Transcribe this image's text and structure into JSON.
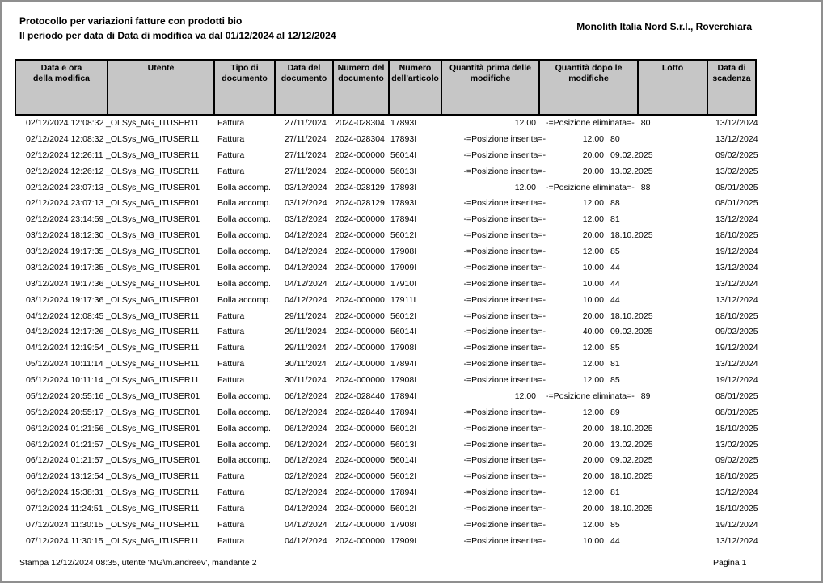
{
  "report": {
    "title": "Protocollo per variazioni fatture con prodotti bio",
    "subtitle": "Il periodo per data di Data di modifica va dal 01/12/2024 al 12/12/2024",
    "company": "Monolith Italia Nord S.r.l., Roverchiara",
    "footer_left": "Stampa 12/12/2024 08:35, utente 'MG\\m.andreev', mandante 2",
    "footer_right": "Pagina 1"
  },
  "colors": {
    "header_bg": "#c6c6c6",
    "table_border": "#000000",
    "page_frame": "#8f8f8f"
  },
  "table": {
    "columns": [
      "Data e ora\ndella modifica",
      "Utente",
      "Tipo di\ndocumento",
      "Data del\ndocumento",
      "Numero del\ndocumento",
      "Numero\ndell'articolo",
      "Quantità prima delle\nmodifiche",
      "Quantità dopo le\nmodifiche",
      "Lotto",
      "Data di\nscadenza"
    ],
    "marker_prefix": "-=",
    "rows": [
      [
        "02/12/2024 12:08:32",
        "_OLSys_MG_ITUSER11",
        "Fattura",
        "27/11/2024",
        "2024-028304",
        "17893I",
        "12.00",
        "-=Posizione eliminata=-",
        "80",
        "13/12/2024"
      ],
      [
        "02/12/2024 12:08:32",
        "_OLSys_MG_ITUSER11",
        "Fattura",
        "27/11/2024",
        "2024-028304",
        "17893I",
        "-=Posizione inserita=-",
        "12.00",
        "80",
        "13/12/2024"
      ],
      [
        "02/12/2024 12:26:11",
        "_OLSys_MG_ITUSER11",
        "Fattura",
        "27/11/2024",
        "2024-000000",
        "56014I",
        "-=Posizione inserita=-",
        "20.00",
        "09.02.2025",
        "09/02/2025"
      ],
      [
        "02/12/2024 12:26:12",
        "_OLSys_MG_ITUSER11",
        "Fattura",
        "27/11/2024",
        "2024-000000",
        "56013I",
        "-=Posizione inserita=-",
        "20.00",
        "13.02.2025",
        "13/02/2025"
      ],
      [
        "02/12/2024 23:07:13",
        "_OLSys_MG_ITUSER01",
        "Bolla accomp.",
        "03/12/2024",
        "2024-028129",
        "17893I",
        "12.00",
        "-=Posizione eliminata=-",
        "88",
        "08/01/2025"
      ],
      [
        "02/12/2024 23:07:13",
        "_OLSys_MG_ITUSER01",
        "Bolla accomp.",
        "03/12/2024",
        "2024-028129",
        "17893I",
        "-=Posizione inserita=-",
        "12.00",
        "88",
        "08/01/2025"
      ],
      [
        "02/12/2024 23:14:59",
        "_OLSys_MG_ITUSER01",
        "Bolla accomp.",
        "03/12/2024",
        "2024-000000",
        "17894I",
        "-=Posizione inserita=-",
        "12.00",
        "81",
        "13/12/2024"
      ],
      [
        "03/12/2024 18:12:30",
        "_OLSys_MG_ITUSER01",
        "Bolla accomp.",
        "04/12/2024",
        "2024-000000",
        "56012I",
        "-=Posizione inserita=-",
        "20.00",
        "18.10.2025",
        "18/10/2025"
      ],
      [
        "03/12/2024 19:17:35",
        "_OLSys_MG_ITUSER01",
        "Bolla accomp.",
        "04/12/2024",
        "2024-000000",
        "17908I",
        "-=Posizione inserita=-",
        "12.00",
        "85",
        "19/12/2024"
      ],
      [
        "03/12/2024 19:17:35",
        "_OLSys_MG_ITUSER01",
        "Bolla accomp.",
        "04/12/2024",
        "2024-000000",
        "17909I",
        "-=Posizione inserita=-",
        "10.00",
        "44",
        "13/12/2024"
      ],
      [
        "03/12/2024 19:17:36",
        "_OLSys_MG_ITUSER01",
        "Bolla accomp.",
        "04/12/2024",
        "2024-000000",
        "17910I",
        "-=Posizione inserita=-",
        "10.00",
        "44",
        "13/12/2024"
      ],
      [
        "03/12/2024 19:17:36",
        "_OLSys_MG_ITUSER01",
        "Bolla accomp.",
        "04/12/2024",
        "2024-000000",
        "17911I",
        "-=Posizione inserita=-",
        "10.00",
        "44",
        "13/12/2024"
      ],
      [
        "04/12/2024 12:08:45",
        "_OLSys_MG_ITUSER11",
        "Fattura",
        "29/11/2024",
        "2024-000000",
        "56012I",
        "-=Posizione inserita=-",
        "20.00",
        "18.10.2025",
        "18/10/2025"
      ],
      [
        "04/12/2024 12:17:26",
        "_OLSys_MG_ITUSER11",
        "Fattura",
        "29/11/2024",
        "2024-000000",
        "56014I",
        "-=Posizione inserita=-",
        "40.00",
        "09.02.2025",
        "09/02/2025"
      ],
      [
        "04/12/2024 12:19:54",
        "_OLSys_MG_ITUSER11",
        "Fattura",
        "29/11/2024",
        "2024-000000",
        "17908I",
        "-=Posizione inserita=-",
        "12.00",
        "85",
        "19/12/2024"
      ],
      [
        "05/12/2024 10:11:14",
        "_OLSys_MG_ITUSER11",
        "Fattura",
        "30/11/2024",
        "2024-000000",
        "17894I",
        "-=Posizione inserita=-",
        "12.00",
        "81",
        "13/12/2024"
      ],
      [
        "05/12/2024 10:11:14",
        "_OLSys_MG_ITUSER11",
        "Fattura",
        "30/11/2024",
        "2024-000000",
        "17908I",
        "-=Posizione inserita=-",
        "12.00",
        "85",
        "19/12/2024"
      ],
      [
        "05/12/2024 20:55:16",
        "_OLSys_MG_ITUSER01",
        "Bolla accomp.",
        "06/12/2024",
        "2024-028440",
        "17894I",
        "12.00",
        "-=Posizione eliminata=-",
        "89",
        "08/01/2025"
      ],
      [
        "05/12/2024 20:55:17",
        "_OLSys_MG_ITUSER01",
        "Bolla accomp.",
        "06/12/2024",
        "2024-028440",
        "17894I",
        "-=Posizione inserita=-",
        "12.00",
        "89",
        "08/01/2025"
      ],
      [
        "06/12/2024 01:21:56",
        "_OLSys_MG_ITUSER01",
        "Bolla accomp.",
        "06/12/2024",
        "2024-000000",
        "56012I",
        "-=Posizione inserita=-",
        "20.00",
        "18.10.2025",
        "18/10/2025"
      ],
      [
        "06/12/2024 01:21:57",
        "_OLSys_MG_ITUSER01",
        "Bolla accomp.",
        "06/12/2024",
        "2024-000000",
        "56013I",
        "-=Posizione inserita=-",
        "20.00",
        "13.02.2025",
        "13/02/2025"
      ],
      [
        "06/12/2024 01:21:57",
        "_OLSys_MG_ITUSER01",
        "Bolla accomp.",
        "06/12/2024",
        "2024-000000",
        "56014I",
        "-=Posizione inserita=-",
        "20.00",
        "09.02.2025",
        "09/02/2025"
      ],
      [
        "06/12/2024 13:12:54",
        "_OLSys_MG_ITUSER11",
        "Fattura",
        "02/12/2024",
        "2024-000000",
        "56012I",
        "-=Posizione inserita=-",
        "20.00",
        "18.10.2025",
        "18/10/2025"
      ],
      [
        "06/12/2024 15:38:31",
        "_OLSys_MG_ITUSER11",
        "Fattura",
        "03/12/2024",
        "2024-000000",
        "17894I",
        "-=Posizione inserita=-",
        "12.00",
        "81",
        "13/12/2024"
      ],
      [
        "07/12/2024 11:24:51",
        "_OLSys_MG_ITUSER11",
        "Fattura",
        "04/12/2024",
        "2024-000000",
        "56012I",
        "-=Posizione inserita=-",
        "20.00",
        "18.10.2025",
        "18/10/2025"
      ],
      [
        "07/12/2024 11:30:15",
        "_OLSys_MG_ITUSER11",
        "Fattura",
        "04/12/2024",
        "2024-000000",
        "17908I",
        "-=Posizione inserita=-",
        "12.00",
        "85",
        "19/12/2024"
      ],
      [
        "07/12/2024 11:30:15",
        "_OLSys_MG_ITUSER11",
        "Fattura",
        "04/12/2024",
        "2024-000000",
        "17909I",
        "-=Posizione inserita=-",
        "10.00",
        "44",
        "13/12/2024"
      ]
    ]
  }
}
